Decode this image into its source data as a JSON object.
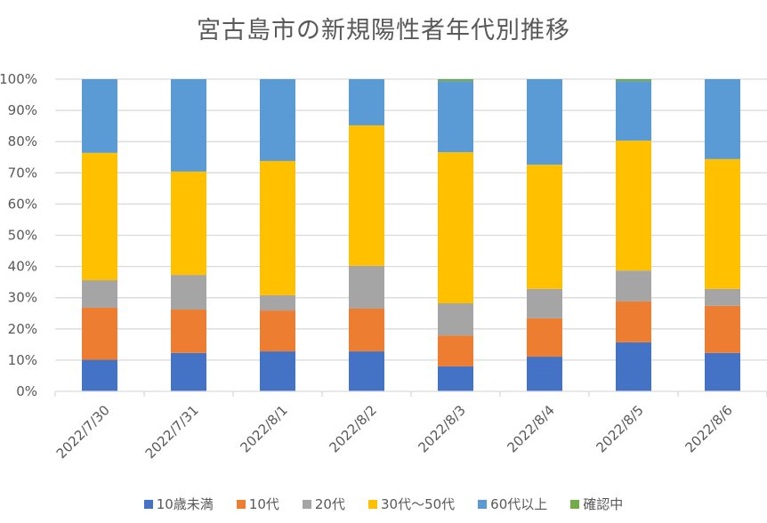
{
  "chart_data": {
    "type": "bar",
    "stacked": "percent",
    "title": "宮古島市の新規陽性者年代別推移",
    "xlabel": "",
    "ylabel": "",
    "ylim": [
      0,
      100
    ],
    "yticks": [
      "0%",
      "10%",
      "20%",
      "30%",
      "40%",
      "50%",
      "60%",
      "70%",
      "80%",
      "90%",
      "100%"
    ],
    "grid": true,
    "legend_position": "bottom",
    "categories": [
      "2022/7/30",
      "2022/7/31",
      "2022/8/1",
      "2022/8/2",
      "2022/8/3",
      "2022/8/4",
      "2022/8/5",
      "2022/8/6"
    ],
    "series": [
      {
        "name": "10歳未満",
        "color": "#4472C4",
        "values": [
          10.1,
          12.3,
          12.8,
          12.8,
          8.0,
          11.1,
          15.7,
          12.3
        ]
      },
      {
        "name": "10代",
        "color": "#ED7D31",
        "values": [
          16.7,
          13.9,
          13.1,
          13.7,
          9.9,
          12.3,
          13.1,
          15.1
        ]
      },
      {
        "name": "20代",
        "color": "#A5A5A5",
        "values": [
          8.8,
          11.1,
          4.9,
          13.7,
          10.3,
          9.4,
          9.9,
          5.4
        ]
      },
      {
        "name": "30代～50代",
        "color": "#FFC000",
        "values": [
          40.8,
          33.1,
          43.0,
          45.0,
          48.4,
          39.8,
          41.6,
          41.6
        ]
      },
      {
        "name": "60代以上",
        "color": "#5B9BD5",
        "values": [
          23.6,
          29.6,
          26.2,
          14.8,
          22.8,
          27.4,
          19.1,
          25.6
        ]
      },
      {
        "name": "確認中",
        "color": "#70AD47",
        "values": [
          0,
          0,
          0,
          0,
          0.6,
          0,
          0.6,
          0
        ]
      }
    ]
  }
}
